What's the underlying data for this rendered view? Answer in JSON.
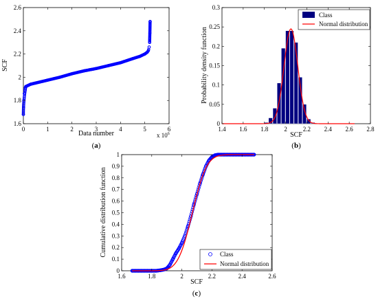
{
  "chart_data": [
    {
      "id": "a",
      "type": "scatter",
      "panel_label": "a",
      "xlabel": "Data number",
      "ylabel": "SCF",
      "x_exponent_label": "x 10",
      "x_exponent_power": "6",
      "xlim": [
        0,
        6
      ],
      "ylim": [
        1.6,
        2.6
      ],
      "xticks": [
        "0",
        "1",
        "2",
        "3",
        "4",
        "5",
        "6"
      ],
      "yticks": [
        "1.6",
        "1.8",
        "2",
        "2.2",
        "2.4",
        "2.6"
      ],
      "grid": false,
      "color": "#0000ff",
      "series": [
        {
          "x": [
            0.0,
            0.01,
            0.02,
            0.04,
            0.06,
            0.08,
            0.1,
            0.15,
            0.2,
            0.3,
            0.5,
            0.8,
            1.0,
            1.5,
            2.0,
            2.5,
            3.0,
            3.5,
            4.0,
            4.5,
            4.8,
            5.0,
            5.1,
            5.15,
            5.18,
            5.2,
            5.21,
            5.22
          ],
          "y": [
            1.68,
            1.74,
            1.8,
            1.86,
            1.89,
            1.91,
            1.92,
            1.925,
            1.93,
            1.94,
            1.95,
            1.965,
            1.975,
            2.0,
            2.03,
            2.055,
            2.075,
            2.1,
            2.125,
            2.16,
            2.18,
            2.2,
            2.215,
            2.23,
            2.26,
            2.3,
            2.38,
            2.48
          ]
        }
      ]
    },
    {
      "id": "b",
      "type": "bar",
      "panel_label": "b",
      "xlabel": "SCF",
      "ylabel": "Probability density function",
      "xlim": [
        1.4,
        2.8
      ],
      "ylim": [
        0,
        0.3
      ],
      "xticks": [
        "1.4",
        "1.6",
        "1.8",
        "2",
        "2.2",
        "2.4",
        "2.6",
        "2.8"
      ],
      "yticks": [
        "0",
        "0.05",
        "0.1",
        "0.15",
        "0.2",
        "0.25",
        "0.3"
      ],
      "grid": false,
      "legend_position": "top-right",
      "bar_width": 0.04,
      "series": [
        {
          "name": "Class",
          "kind": "bar",
          "color": "#000080",
          "x": [
            1.82,
            1.86,
            1.9,
            1.94,
            1.98,
            2.02,
            2.06,
            2.1,
            2.14,
            2.18,
            2.22,
            2.26
          ],
          "values": [
            0.003,
            0.015,
            0.04,
            0.105,
            0.195,
            0.24,
            0.24,
            0.21,
            0.12,
            0.05,
            0.012,
            0.003
          ]
        },
        {
          "name": "Normal distribution",
          "kind": "line",
          "color": "#ff0000",
          "mean": 2.05,
          "sd": 0.065,
          "peak": 0.245,
          "x_range": [
            1.4,
            2.65
          ]
        }
      ]
    },
    {
      "id": "c",
      "type": "line",
      "panel_label": "c",
      "xlabel": "SCF",
      "ylabel": "Cumulative distribution function",
      "xlim": [
        1.6,
        2.6
      ],
      "ylim": [
        0,
        1
      ],
      "xticks": [
        "1.6",
        "1.8",
        "2",
        "2.2",
        "2.4",
        "2.6"
      ],
      "yticks": [
        "0",
        "0.1",
        "0.2",
        "0.3",
        "0.4",
        "0.5",
        "0.6",
        "0.7",
        "0.8",
        "0.9",
        "1"
      ],
      "grid": false,
      "legend_position": "bottom-right",
      "series": [
        {
          "name": "Class",
          "kind": "scatter",
          "color": "#0000ff",
          "x": [
            1.67,
            1.69,
            1.71,
            1.73,
            1.75,
            1.77,
            1.8,
            1.83,
            1.86,
            1.88,
            1.9,
            1.92,
            1.94,
            1.96,
            1.98,
            2.0,
            2.02,
            2.04,
            2.06,
            2.08,
            2.1,
            2.12,
            2.14,
            2.16,
            2.18,
            2.2,
            2.22,
            2.24,
            2.26,
            2.28,
            2.3,
            2.32,
            2.34,
            2.36,
            2.38,
            2.4,
            2.42,
            2.44,
            2.46,
            2.48
          ],
          "y": [
            0.0,
            0.0,
            0.0,
            0.0,
            0.0,
            0.0,
            0.0,
            0.0,
            0.005,
            0.01,
            0.02,
            0.05,
            0.1,
            0.15,
            0.19,
            0.24,
            0.3,
            0.38,
            0.47,
            0.57,
            0.66,
            0.75,
            0.83,
            0.9,
            0.95,
            0.98,
            0.995,
            1.0,
            1.0,
            1.0,
            1.0,
            1.0,
            1.0,
            1.0,
            1.0,
            1.0,
            1.0,
            1.0,
            1.0,
            1.0
          ]
        },
        {
          "name": "Normal distribution",
          "kind": "line",
          "color": "#ff0000",
          "mean": 2.07,
          "sd": 0.075,
          "x_range": [
            1.67,
            2.48
          ]
        }
      ]
    }
  ]
}
